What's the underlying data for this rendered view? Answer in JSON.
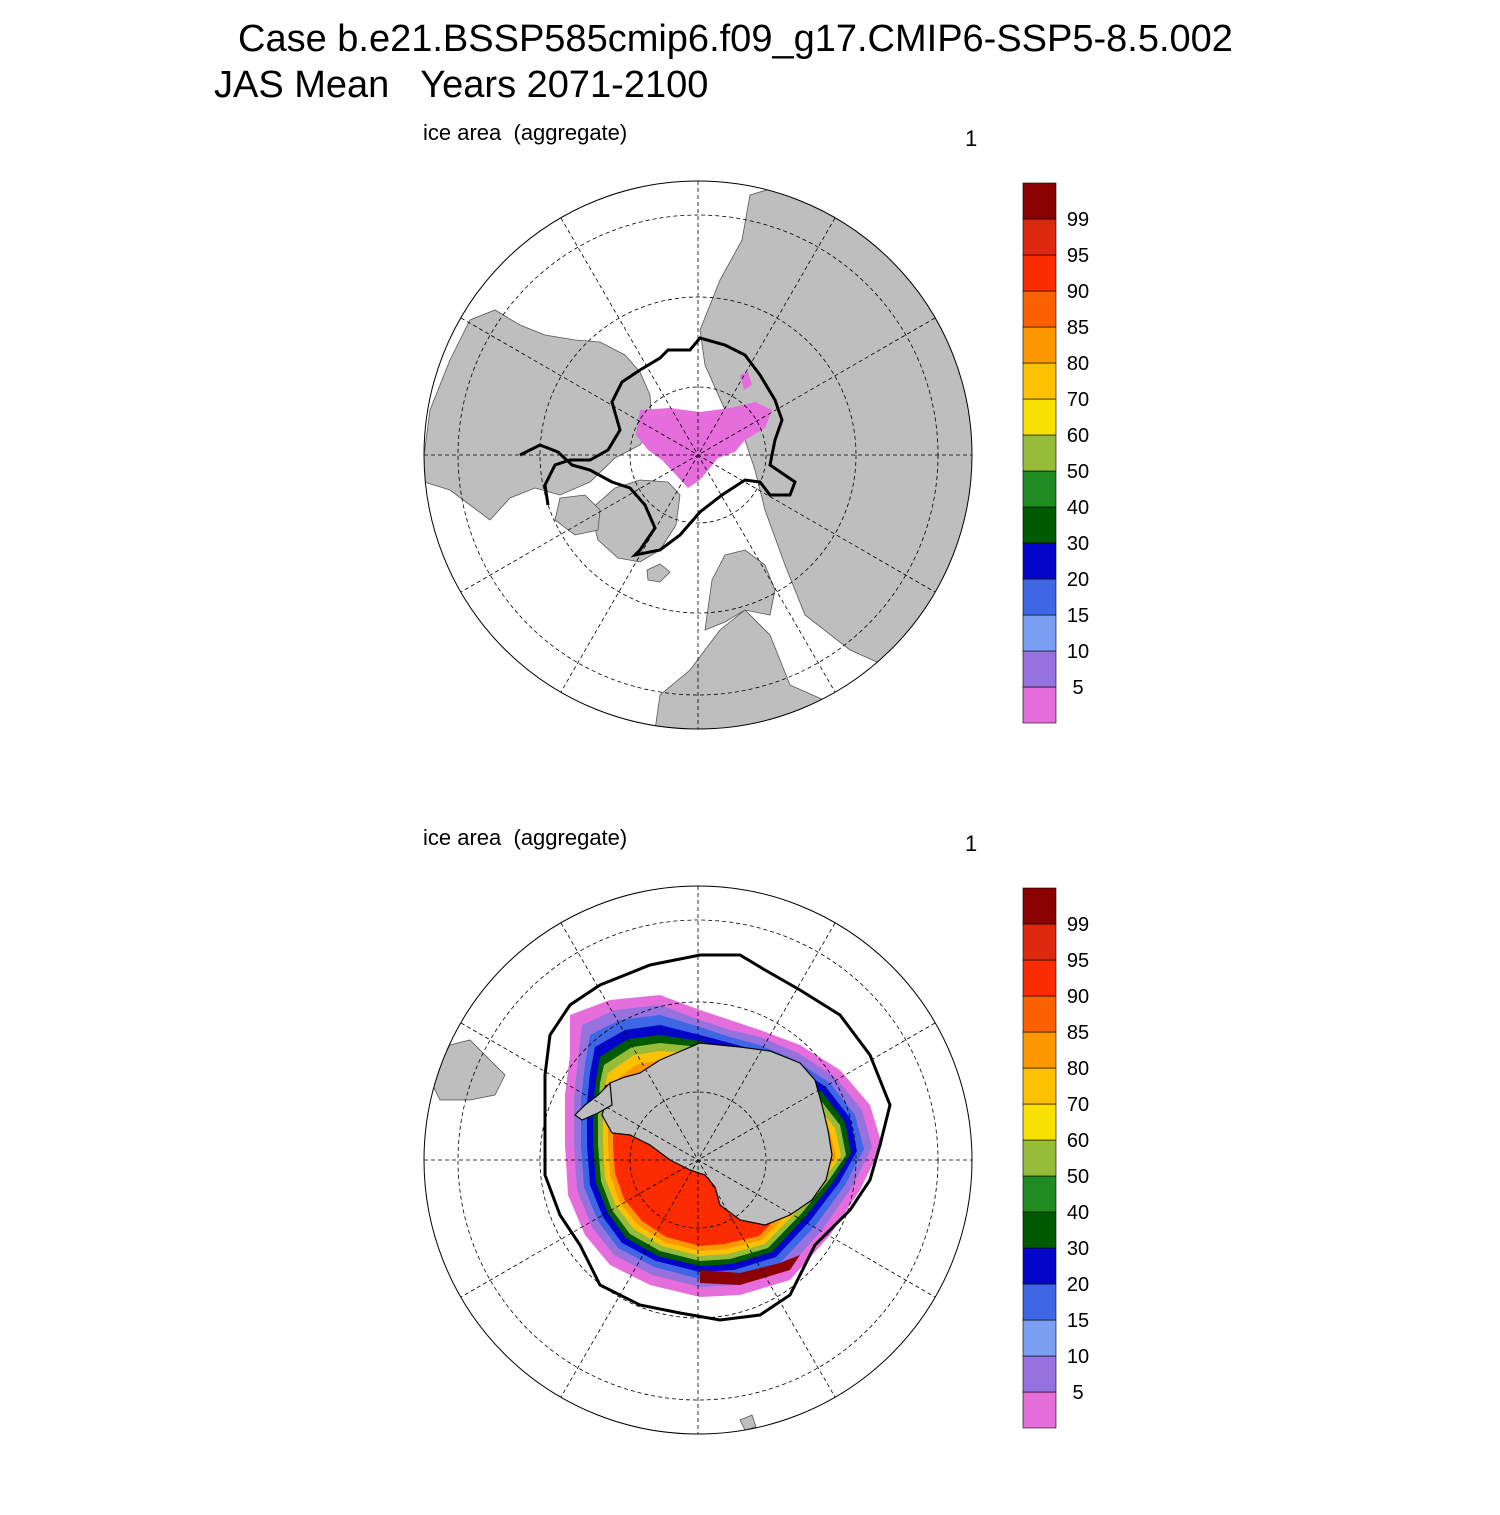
{
  "header": {
    "line1": "Case b.e21.BSSP585cmip6.f09_g17.CMIP6-SSP5-8.5.002",
    "line2": "JAS Mean   Years 2071-2100"
  },
  "panels": [
    {
      "id": "north",
      "label": "ice area  (aggregate)",
      "number": "1",
      "hemisphere": "Arctic"
    },
    {
      "id": "south",
      "label": "ice area  (aggregate)",
      "number": "1",
      "hemisphere": "Antarctic"
    }
  ],
  "colorbar": {
    "levels": [
      "5",
      "10",
      "15",
      "20",
      "30",
      "40",
      "50",
      "60",
      "70",
      "80",
      "85",
      "90",
      "95",
      "99"
    ],
    "colors": [
      "#e56ddc",
      "#9672df",
      "#7b9ff2",
      "#3f66e5",
      "#0505c9",
      "#005a00",
      "#208b20",
      "#96bc39",
      "#f8e000",
      "#fcc100",
      "#fc9700",
      "#fc6000",
      "#fc2c00",
      "#dd2810",
      "#8b0000"
    ]
  },
  "colors": {
    "land": "#bebebe",
    "ocean": "#ffffff",
    "outline": "#000000"
  }
}
